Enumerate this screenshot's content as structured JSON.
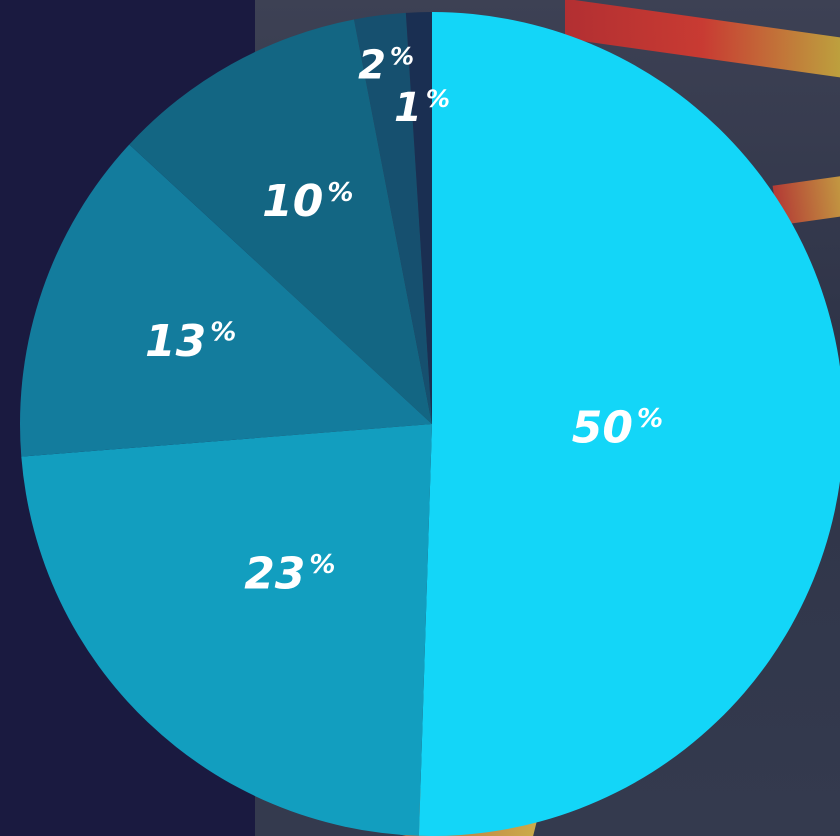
{
  "chart_data": {
    "type": "pie",
    "title": "",
    "slices": [
      {
        "label": "50%",
        "value": 50,
        "color": "#13d6f8"
      },
      {
        "label": "23%",
        "value": 23,
        "color": "#129ebf"
      },
      {
        "label": "13%",
        "value": 13,
        "color": "#137c9d"
      },
      {
        "label": "10%",
        "value": 10,
        "color": "#136683"
      },
      {
        "label": "2%",
        "value": 2,
        "color": "#16506f"
      },
      {
        "label": "1%",
        "value": 1,
        "color": "#1a2f52"
      }
    ],
    "start": "top",
    "direction": "clockwise",
    "legend": "none"
  },
  "colors": {
    "background": "#1a1a40",
    "label_text": "#ffffff"
  }
}
